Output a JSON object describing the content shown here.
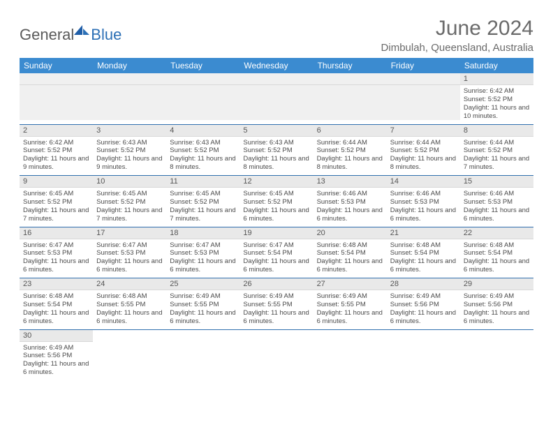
{
  "brand": {
    "general": "General",
    "blue": "Blue"
  },
  "title": "June 2024",
  "location": "Dimbulah, Queensland, Australia",
  "colors": {
    "header_bg": "#3b8bd0",
    "header_text": "#ffffff",
    "daynum_bg": "#e9e9e9",
    "row_border": "#2f6fae",
    "text": "#4a4a4a",
    "title_text": "#6a6a6a",
    "logo_gray": "#5a5a5a",
    "logo_blue": "#2b6fb5"
  },
  "weekdays": [
    "Sunday",
    "Monday",
    "Tuesday",
    "Wednesday",
    "Thursday",
    "Friday",
    "Saturday"
  ],
  "leading_blanks": 6,
  "days": [
    {
      "n": 1,
      "sunrise": "6:42 AM",
      "sunset": "5:52 PM",
      "daylight": "11 hours and 10 minutes."
    },
    {
      "n": 2,
      "sunrise": "6:42 AM",
      "sunset": "5:52 PM",
      "daylight": "11 hours and 9 minutes."
    },
    {
      "n": 3,
      "sunrise": "6:43 AM",
      "sunset": "5:52 PM",
      "daylight": "11 hours and 9 minutes."
    },
    {
      "n": 4,
      "sunrise": "6:43 AM",
      "sunset": "5:52 PM",
      "daylight": "11 hours and 8 minutes."
    },
    {
      "n": 5,
      "sunrise": "6:43 AM",
      "sunset": "5:52 PM",
      "daylight": "11 hours and 8 minutes."
    },
    {
      "n": 6,
      "sunrise": "6:44 AM",
      "sunset": "5:52 PM",
      "daylight": "11 hours and 8 minutes."
    },
    {
      "n": 7,
      "sunrise": "6:44 AM",
      "sunset": "5:52 PM",
      "daylight": "11 hours and 8 minutes."
    },
    {
      "n": 8,
      "sunrise": "6:44 AM",
      "sunset": "5:52 PM",
      "daylight": "11 hours and 7 minutes."
    },
    {
      "n": 9,
      "sunrise": "6:45 AM",
      "sunset": "5:52 PM",
      "daylight": "11 hours and 7 minutes."
    },
    {
      "n": 10,
      "sunrise": "6:45 AM",
      "sunset": "5:52 PM",
      "daylight": "11 hours and 7 minutes."
    },
    {
      "n": 11,
      "sunrise": "6:45 AM",
      "sunset": "5:52 PM",
      "daylight": "11 hours and 7 minutes."
    },
    {
      "n": 12,
      "sunrise": "6:45 AM",
      "sunset": "5:52 PM",
      "daylight": "11 hours and 6 minutes."
    },
    {
      "n": 13,
      "sunrise": "6:46 AM",
      "sunset": "5:53 PM",
      "daylight": "11 hours and 6 minutes."
    },
    {
      "n": 14,
      "sunrise": "6:46 AM",
      "sunset": "5:53 PM",
      "daylight": "11 hours and 6 minutes."
    },
    {
      "n": 15,
      "sunrise": "6:46 AM",
      "sunset": "5:53 PM",
      "daylight": "11 hours and 6 minutes."
    },
    {
      "n": 16,
      "sunrise": "6:47 AM",
      "sunset": "5:53 PM",
      "daylight": "11 hours and 6 minutes."
    },
    {
      "n": 17,
      "sunrise": "6:47 AM",
      "sunset": "5:53 PM",
      "daylight": "11 hours and 6 minutes."
    },
    {
      "n": 18,
      "sunrise": "6:47 AM",
      "sunset": "5:53 PM",
      "daylight": "11 hours and 6 minutes."
    },
    {
      "n": 19,
      "sunrise": "6:47 AM",
      "sunset": "5:54 PM",
      "daylight": "11 hours and 6 minutes."
    },
    {
      "n": 20,
      "sunrise": "6:48 AM",
      "sunset": "5:54 PM",
      "daylight": "11 hours and 6 minutes."
    },
    {
      "n": 21,
      "sunrise": "6:48 AM",
      "sunset": "5:54 PM",
      "daylight": "11 hours and 6 minutes."
    },
    {
      "n": 22,
      "sunrise": "6:48 AM",
      "sunset": "5:54 PM",
      "daylight": "11 hours and 6 minutes."
    },
    {
      "n": 23,
      "sunrise": "6:48 AM",
      "sunset": "5:54 PM",
      "daylight": "11 hours and 6 minutes."
    },
    {
      "n": 24,
      "sunrise": "6:48 AM",
      "sunset": "5:55 PM",
      "daylight": "11 hours and 6 minutes."
    },
    {
      "n": 25,
      "sunrise": "6:49 AM",
      "sunset": "5:55 PM",
      "daylight": "11 hours and 6 minutes."
    },
    {
      "n": 26,
      "sunrise": "6:49 AM",
      "sunset": "5:55 PM",
      "daylight": "11 hours and 6 minutes."
    },
    {
      "n": 27,
      "sunrise": "6:49 AM",
      "sunset": "5:55 PM",
      "daylight": "11 hours and 6 minutes."
    },
    {
      "n": 28,
      "sunrise": "6:49 AM",
      "sunset": "5:56 PM",
      "daylight": "11 hours and 6 minutes."
    },
    {
      "n": 29,
      "sunrise": "6:49 AM",
      "sunset": "5:56 PM",
      "daylight": "11 hours and 6 minutes."
    },
    {
      "n": 30,
      "sunrise": "6:49 AM",
      "sunset": "5:56 PM",
      "daylight": "11 hours and 6 minutes."
    }
  ],
  "labels": {
    "sunrise": "Sunrise:",
    "sunset": "Sunset:",
    "daylight": "Daylight:"
  }
}
